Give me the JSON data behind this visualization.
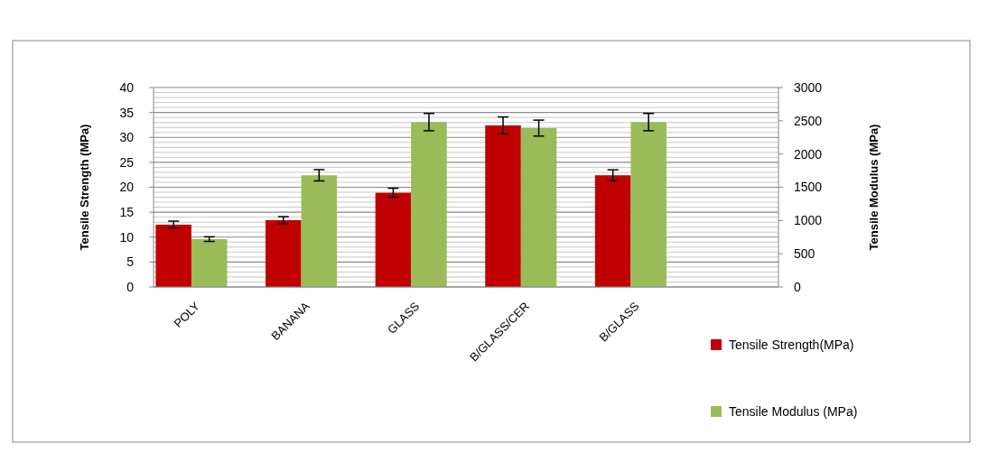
{
  "chart_data": {
    "type": "bar",
    "ylabel": "Tensile Strength (MPa)",
    "y2label": "Tensile Modulus  (MPa)",
    "categories": [
      "POLY",
      "BANANA",
      "GLASS",
      "B/GLASS/CER",
      "B/GLASS",
      null
    ],
    "series": [
      {
        "name": "Tensile Strength(MPa)",
        "color": "#c00000",
        "values": [
          12.5,
          13.4,
          18.9,
          32.4,
          22.4,
          null
        ],
        "errors": [
          0.7,
          0.7,
          0.9,
          1.7,
          1.1,
          null
        ]
      },
      {
        "name": "Tensile Modulus  (MPa)",
        "color": "#9bbb59",
        "axis": "y2",
        "values": [
          720,
          1680,
          2480,
          2390,
          2480,
          null
        ],
        "errors": [
          35,
          85,
          130,
          120,
          130,
          null
        ]
      }
    ],
    "ylim": [
      0,
      40
    ],
    "yticks": [
      0,
      {
        "value": 1,
        "label": null
      },
      {
        "value": 2,
        "label": null
      },
      {
        "value": 3,
        "label": null
      },
      {
        "value": 4,
        "label": null
      },
      5,
      {
        "value": 6,
        "label": null
      },
      {
        "value": 7,
        "label": null
      },
      {
        "value": 8,
        "label": null
      },
      {
        "value": 9,
        "label": null
      },
      10,
      {
        "value": 11,
        "label": null
      },
      {
        "value": 12,
        "label": null
      },
      {
        "value": 13,
        "label": null
      },
      {
        "value": 14,
        "label": null
      },
      15,
      {
        "value": 16,
        "label": null
      },
      {
        "value": 17,
        "label": null
      },
      {
        "value": 18,
        "label": null
      },
      {
        "value": 19,
        "label": null
      },
      20,
      {
        "value": 21,
        "label": null
      },
      {
        "value": 22,
        "label": null
      },
      {
        "value": 23,
        "label": null
      },
      {
        "value": 24,
        "label": null
      },
      25,
      {
        "value": 26,
        "label": null
      },
      {
        "value": 27,
        "label": null
      },
      {
        "value": 28,
        "label": null
      },
      {
        "value": 29,
        "label": null
      },
      30,
      {
        "value": 31,
        "label": null
      },
      {
        "value": 32,
        "label": null
      },
      {
        "value": 33,
        "label": null
      },
      {
        "value": 34,
        "label": null
      },
      35,
      {
        "value": 36,
        "label": null
      },
      {
        "value": 37,
        "label": null
      },
      {
        "value": 38,
        "label": null
      },
      {
        "value": 39,
        "label": null
      },
      40
    ],
    "y2lim": [
      0,
      3000
    ],
    "y2ticks": [
      0,
      500,
      1000,
      1500,
      2000,
      2500,
      3000
    ],
    "grid": "y",
    "legend": "bottom right"
  }
}
